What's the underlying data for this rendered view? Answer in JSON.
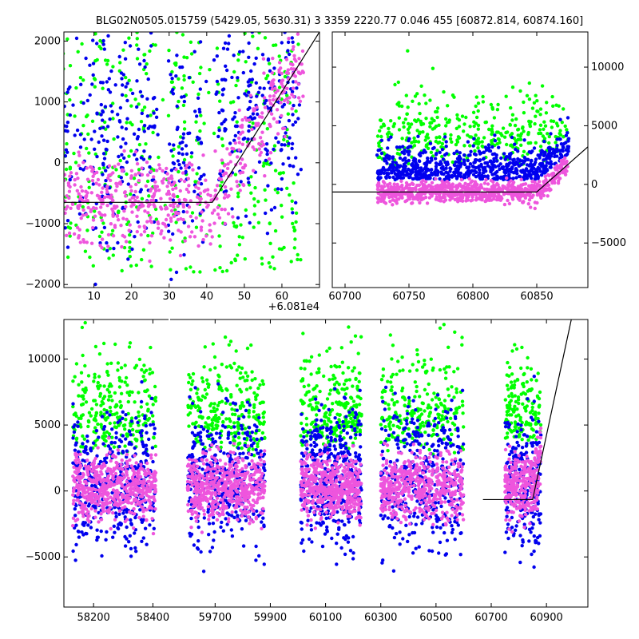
{
  "title": "BLG02N0505.015759 (5429.05, 5630.31)   3 3359 2220.77 0.046 455 [60872.814, 60874.160]",
  "colors": {
    "green": "#00ff00",
    "blue": "#0000ee",
    "pink": "#ee55dd",
    "line": "#000000"
  },
  "chart_data": [
    {
      "type": "scatter",
      "name": "top-left zoom",
      "x_offset_label": "+6.081e4",
      "xlim": [
        2,
        70
      ],
      "ylim": [
        -2050,
        2150
      ],
      "xticks": [
        10,
        20,
        30,
        40,
        50,
        60
      ],
      "xtick_labels": [
        "10",
        "20",
        "30",
        "40",
        "50",
        "60"
      ],
      "yticks": [
        -2000,
        -1000,
        0,
        1000,
        2000
      ],
      "ytick_labels": [
        "−2000",
        "−1000",
        "0",
        "1000",
        "2000"
      ],
      "yaxis_side": "left",
      "series": [
        {
          "name": "green",
          "color": "#00ff00"
        },
        {
          "name": "blue",
          "color": "#0000ee"
        },
        {
          "name": "pink",
          "color": "#ee55dd"
        }
      ],
      "model_line": {
        "x": [
          2,
          41.5,
          70
        ],
        "y": [
          -650,
          -650,
          2150
        ]
      }
    },
    {
      "type": "scatter",
      "name": "top-right",
      "xlim": [
        60690,
        60890
      ],
      "ylim": [
        -8800,
        13000
      ],
      "xticks": [
        60700,
        60750,
        60800,
        60850
      ],
      "xtick_labels": [
        "60700",
        "60750",
        "60800",
        "60850"
      ],
      "yticks": [
        -5000,
        0,
        5000,
        10000
      ],
      "ytick_labels": [
        "−5000",
        "0",
        "5000",
        "10000"
      ],
      "yaxis_side": "right",
      "model_line": {
        "x": [
          60690,
          60850,
          60890
        ],
        "y": [
          -650,
          -650,
          3200
        ]
      }
    },
    {
      "type": "scatter",
      "name": "bottom full",
      "segments": [
        {
          "xlim": [
            58100,
            58450
          ],
          "xticks": [
            58200,
            58400
          ],
          "xtick_labels": [
            "58200",
            "58400"
          ]
        },
        {
          "xlim": [
            59540,
            61050
          ],
          "xticks": [
            59700,
            59900,
            60100,
            60300,
            60500,
            60700,
            60900
          ],
          "xtick_labels": [
            "59700",
            "59900",
            "60100",
            "60300",
            "60500",
            "60700",
            "60900"
          ]
        }
      ],
      "ylim": [
        -8800,
        13000
      ],
      "yticks": [
        -5000,
        0,
        5000,
        10000
      ],
      "ytick_labels": [
        "−5000",
        "0",
        "5000",
        "10000"
      ],
      "yaxis_side": "left",
      "clusters_x": [
        [
          58130,
          58410
        ],
        [
          59600,
          59880
        ],
        [
          60010,
          60230
        ],
        [
          60300,
          60600
        ],
        [
          60750,
          60880
        ]
      ],
      "model_line": {
        "x": [
          60670,
          60850,
          60990
        ],
        "y": [
          -650,
          -650,
          13000
        ]
      }
    }
  ]
}
